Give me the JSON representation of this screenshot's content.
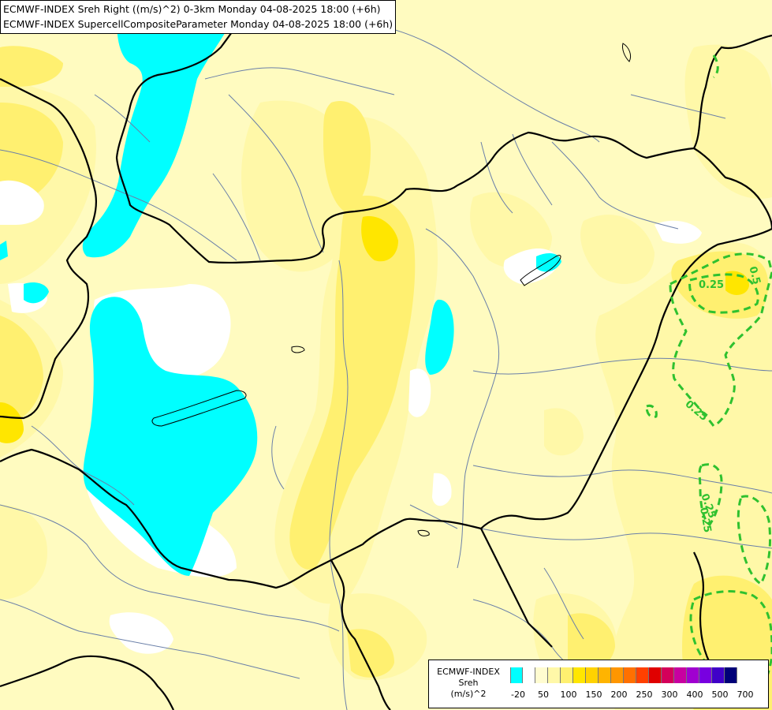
{
  "title": {
    "line1": "ECMWF-INDEX Sreh Right ((m/s)^2) 0-3km Monday 04-08-2025 18:00 (+6h)",
    "line2": "ECMWF-INDEX SupercellCompositeParameter Monday 04-08-2025 18:00 (+6h)"
  },
  "legend": {
    "line1": "ECMWF-INDEX",
    "line2": "Sreh",
    "line3": "(m/s)^2",
    "colors": [
      "#00ffff",
      "#ffffff",
      "#fffcd0",
      "#fff8a8",
      "#fff070",
      "#ffe600",
      "#ffd200",
      "#ffb400",
      "#ff9600",
      "#ff7000",
      "#ff4000",
      "#e00000",
      "#d4005a",
      "#c800a0",
      "#a000d0",
      "#7800e0",
      "#4000c8",
      "#000078"
    ],
    "ticks": [
      "-20",
      "50",
      "100",
      "150",
      "200",
      "250",
      "300",
      "400",
      "500",
      "700"
    ]
  },
  "contour_labels": [
    "0.25",
    "0.25",
    "0.25",
    "0.25",
    "0.5"
  ],
  "colors": {
    "background": "#fffbc0",
    "cyan": "#00ffff",
    "contour": "#2fc12f",
    "borders": "#000000",
    "rivers": "#6a7fa8"
  }
}
